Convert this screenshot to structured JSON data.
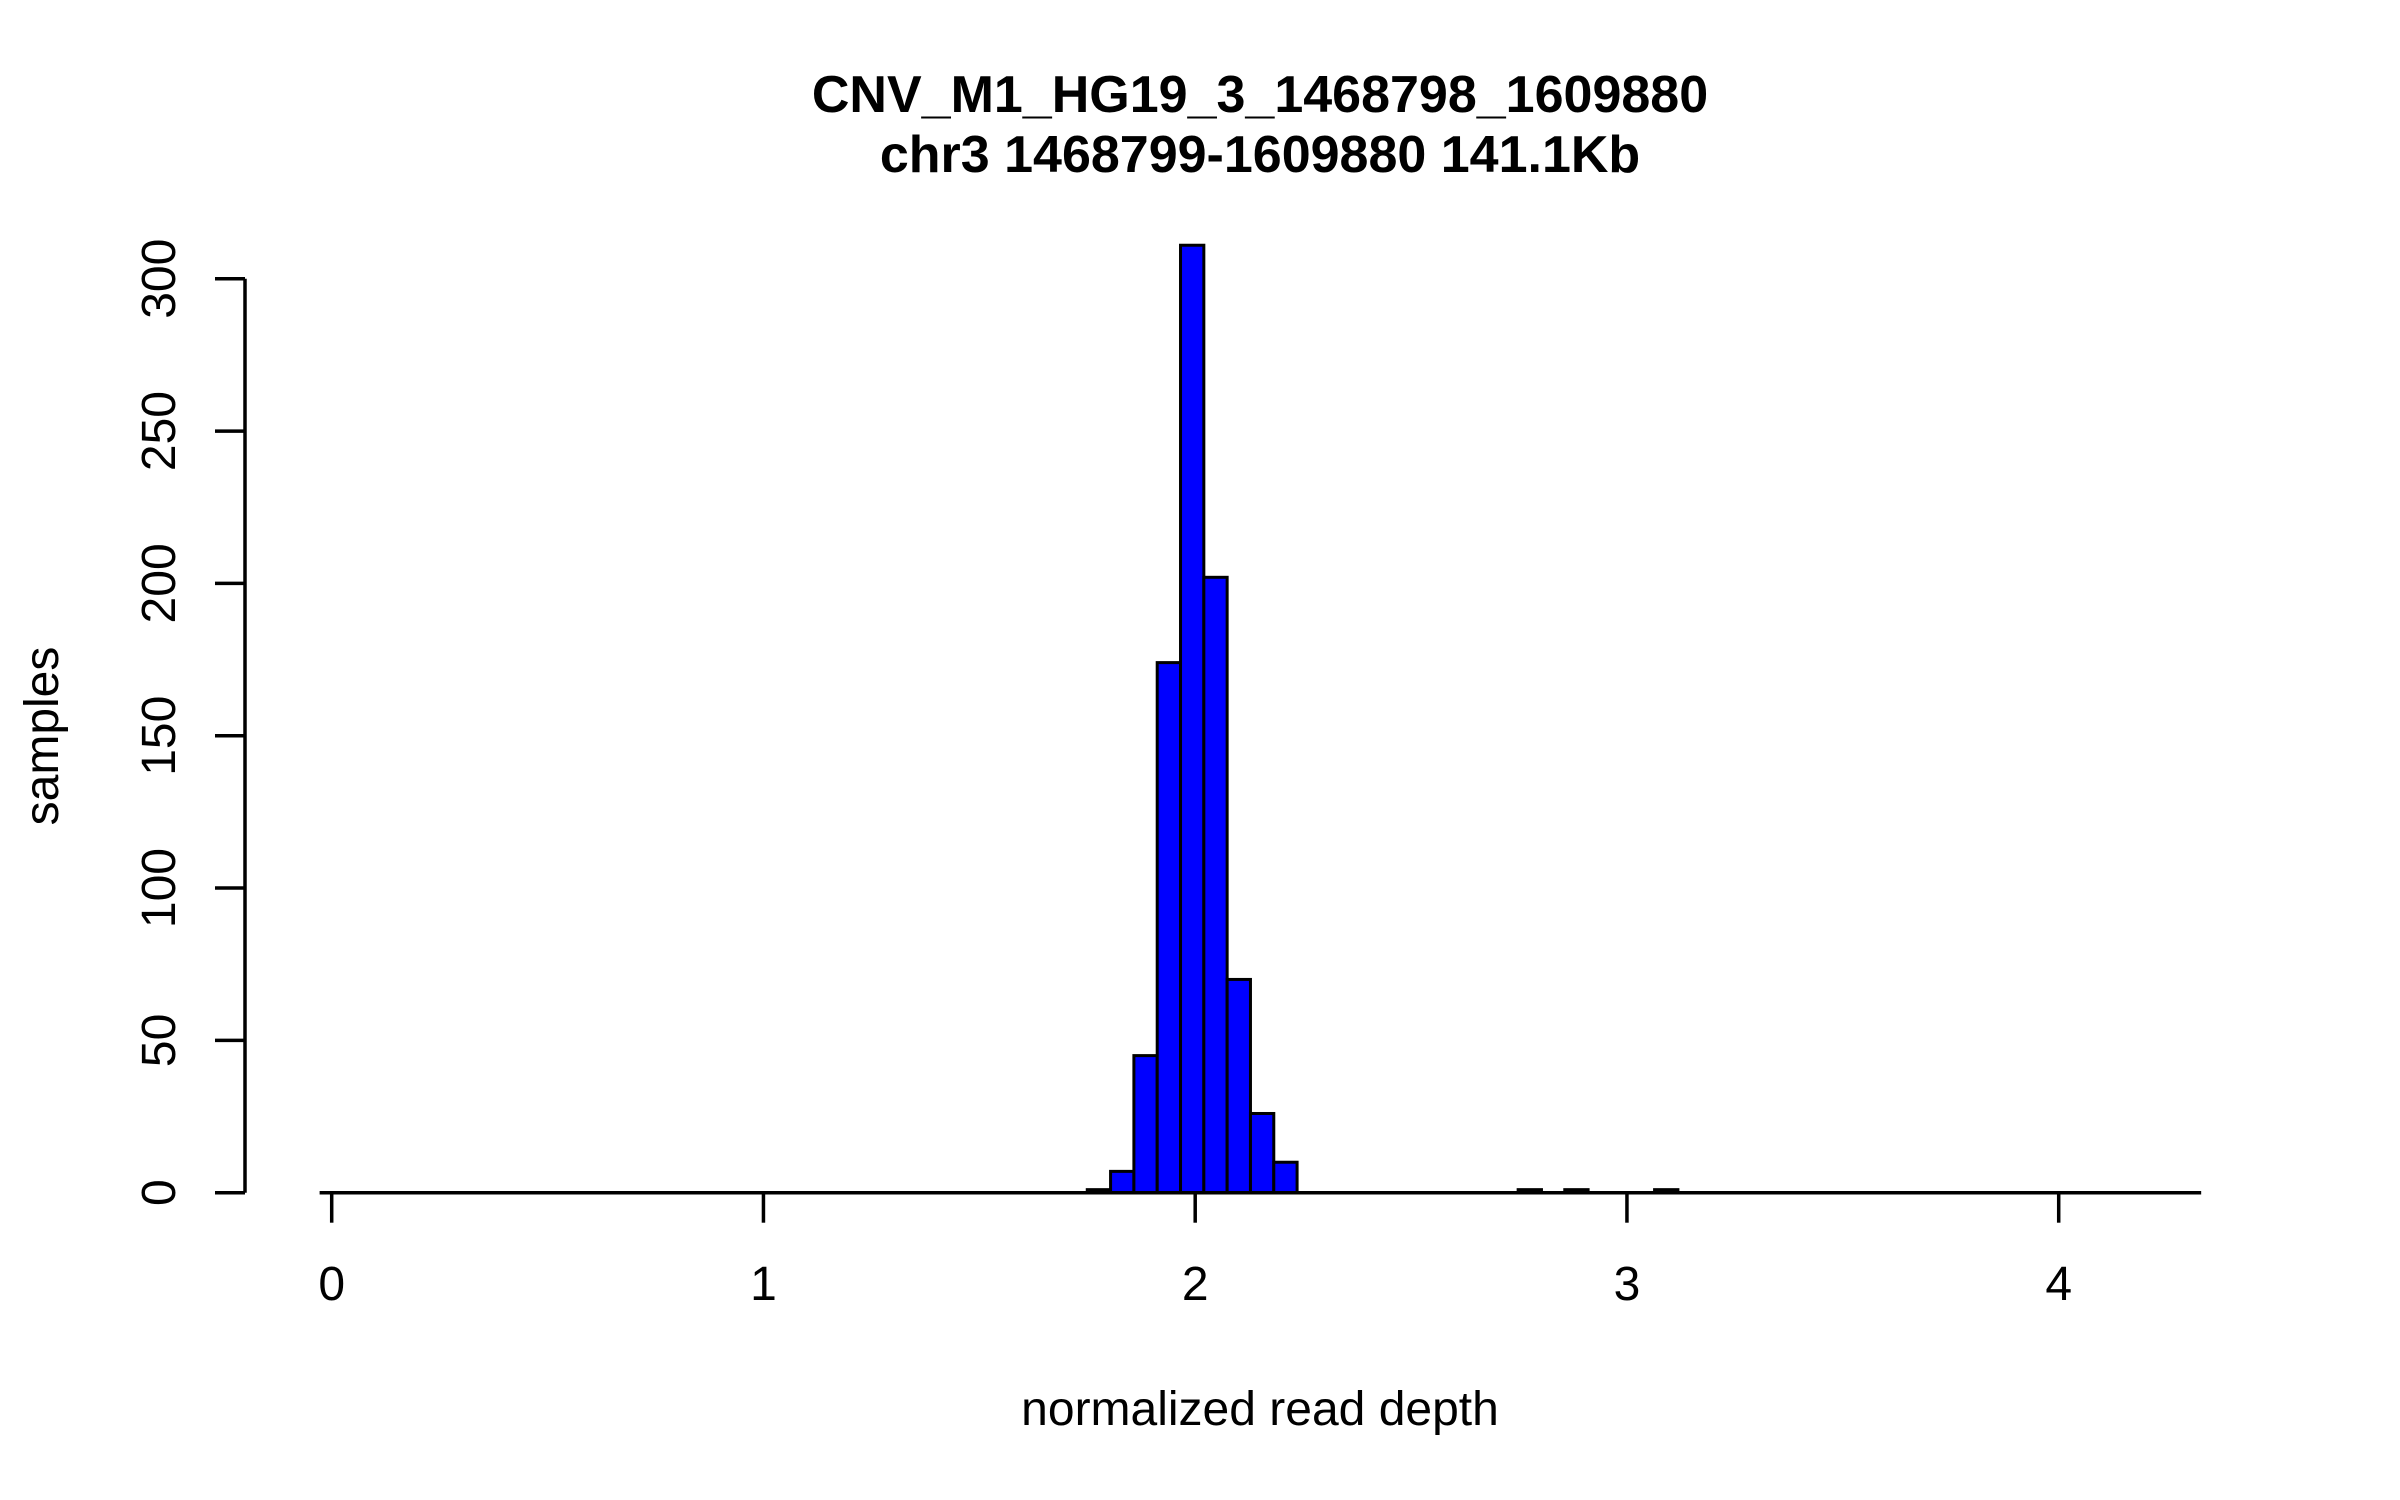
{
  "chart_data": {
    "type": "bar",
    "subtype": "histogram",
    "title": "CNV_M1_HG19_3_1468798_1609880",
    "subtitle": "chr3 1468799-1609880 141.1Kb",
    "xlabel": "normalized read depth",
    "ylabel": "samples",
    "x_tick_labels": [
      "0",
      "1",
      "2",
      "3",
      "4"
    ],
    "x_tick_values": [
      0,
      1,
      2,
      3,
      4
    ],
    "y_tick_labels": [
      "0",
      "50",
      "100",
      "150",
      "200",
      "250",
      "300"
    ],
    "y_tick_values": [
      0,
      50,
      100,
      150,
      200,
      250,
      300
    ],
    "xlim": [
      -0.028,
      4.33
    ],
    "ylim": [
      0,
      300
    ],
    "grid": false,
    "legend": false,
    "bar_color": "#0000FF",
    "bar_border_color": "#000000",
    "axis_color": "#000000",
    "bin_width": 0.054,
    "bins": [
      {
        "start": 1.75,
        "count": 1
      },
      {
        "start": 1.804,
        "count": 7
      },
      {
        "start": 1.858,
        "count": 45
      },
      {
        "start": 1.912,
        "count": 174
      },
      {
        "start": 1.966,
        "count": 311
      },
      {
        "start": 2.02,
        "count": 202
      },
      {
        "start": 2.074,
        "count": 70
      },
      {
        "start": 2.128,
        "count": 26
      },
      {
        "start": 2.182,
        "count": 10
      },
      {
        "start": 2.748,
        "count": 1
      },
      {
        "start": 2.856,
        "count": 1
      },
      {
        "start": 3.064,
        "count": 1
      }
    ]
  }
}
